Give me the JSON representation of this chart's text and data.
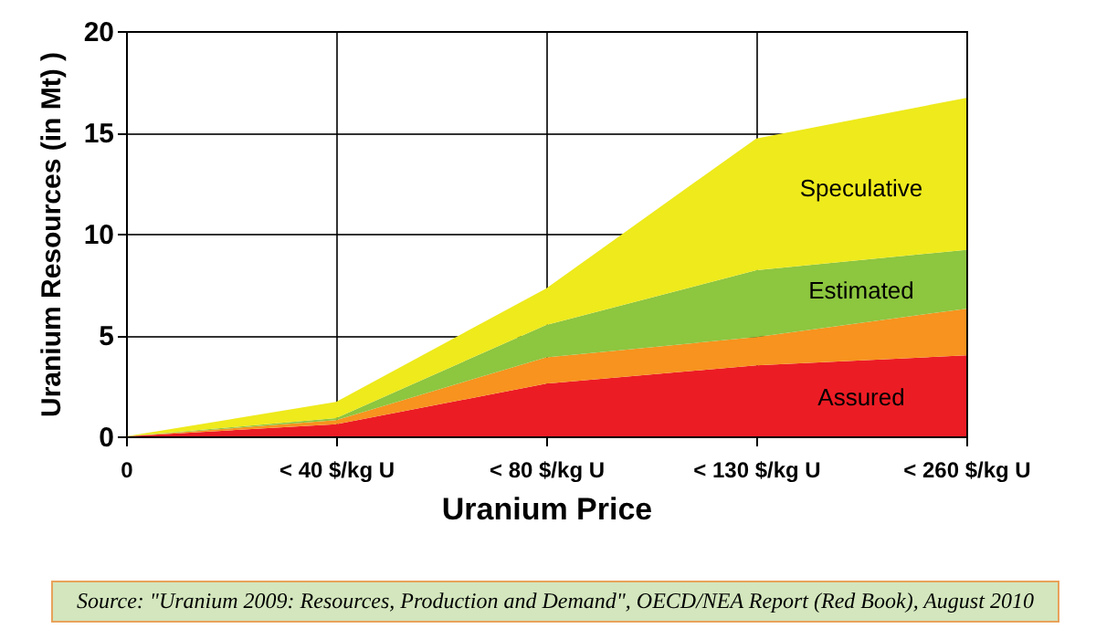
{
  "chart_data": {
    "type": "area",
    "stacked": true,
    "xlabel": "Uranium Price",
    "ylabel": "Uranium Resources (in Mt) )",
    "categories": [
      "0",
      "< 40 $/kg U",
      "< 80 $/kg U",
      "< 130 $/kg U",
      "< 260 $/kg U"
    ],
    "series": [
      {
        "name": "Assured",
        "color": "#ec1c24",
        "values": [
          0,
          0.6,
          2.6,
          3.5,
          4.0
        ]
      },
      {
        "color": "#f7931e",
        "values": [
          0,
          0.2,
          1.3,
          1.4,
          2.3
        ]
      },
      {
        "name": "Estimated",
        "color": "#8dc63f",
        "values": [
          0,
          0.1,
          1.6,
          3.3,
          2.9
        ]
      },
      {
        "name": "Speculative",
        "color": "#eeea1c",
        "values": [
          0,
          0.8,
          1.8,
          6.5,
          7.5
        ]
      }
    ],
    "ylim": [
      0,
      20
    ],
    "yticks": [
      0,
      5,
      10,
      15,
      20
    ],
    "grid": true,
    "annotations": [
      "Source: \"Uranium 2009: Resources, Production and Demand\", OECD/NEA Report (Red Book), August 2010"
    ]
  }
}
